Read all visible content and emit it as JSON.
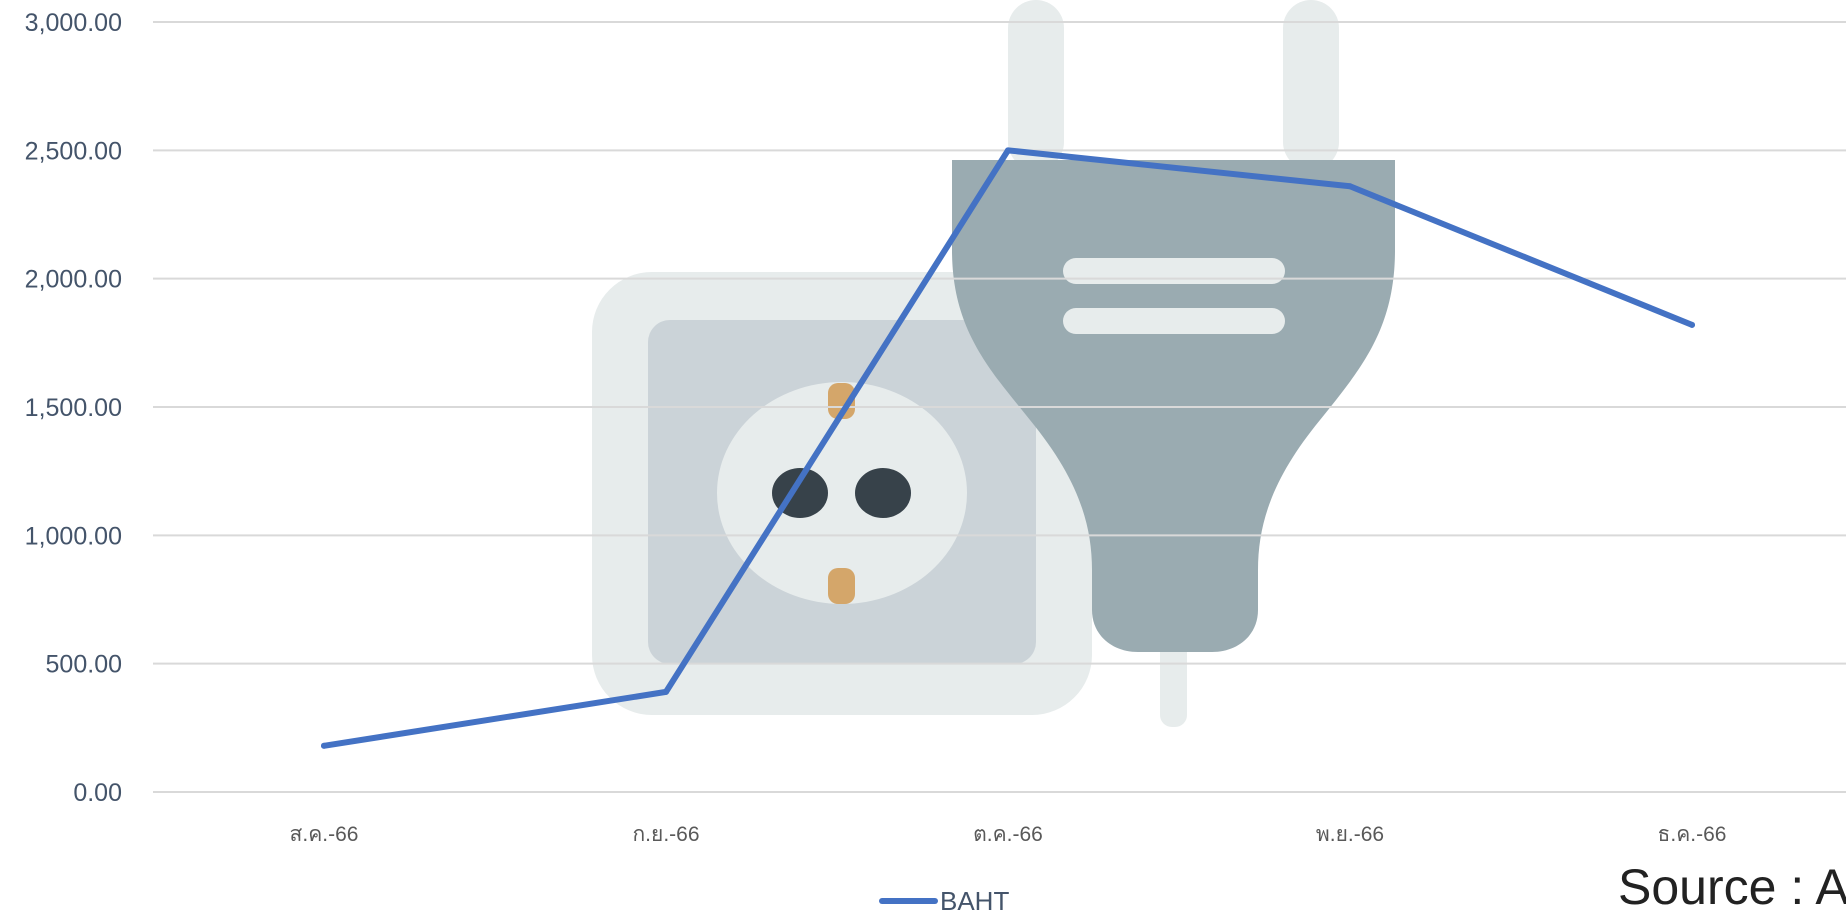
{
  "chart_data": {
    "type": "line",
    "categories": [
      "ส.ค.-66",
      "ก.ย.-66",
      "ต.ค.-66",
      "พ.ย.-66",
      "ธ.ค.-66"
    ],
    "series": [
      {
        "name": "BAHT",
        "values": [
          180,
          390,
          2500,
          2360,
          1820
        ],
        "color": "#4472c4"
      }
    ],
    "ylim": [
      0,
      3000
    ],
    "yticks": [
      "0.00",
      "500.00",
      "1,000.00",
      "1,500.00",
      "2,000.00",
      "2,500.00",
      "3,000.00"
    ],
    "grid": true,
    "legend": "bottom-center",
    "background_illustration": "power-plug-and-socket-icon"
  },
  "source_text": "Source : A"
}
